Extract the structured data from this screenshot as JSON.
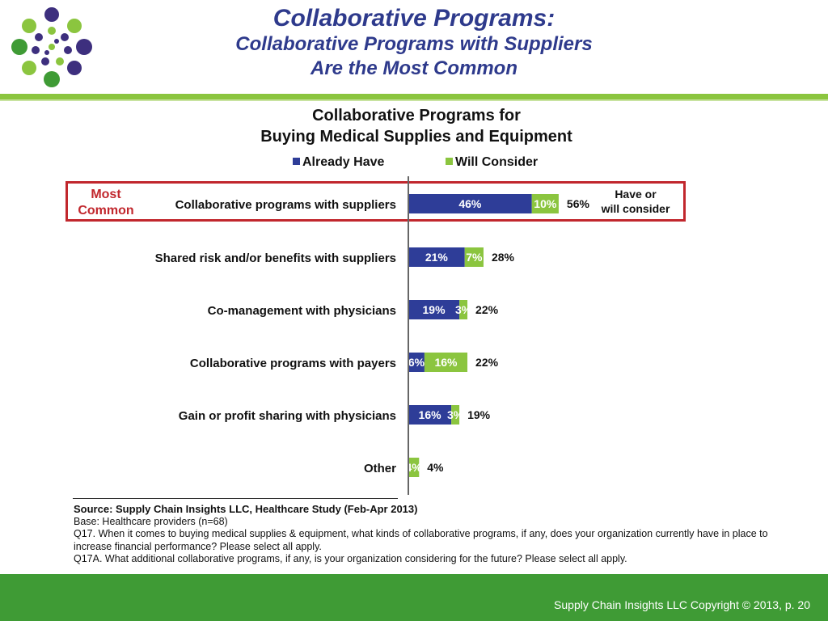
{
  "header": {
    "title": "Collaborative Programs:",
    "subtitle_line1": "Collaborative Programs with Suppliers",
    "subtitle_line2": "Are the Most Common"
  },
  "chart_data": {
    "type": "bar",
    "stacked": true,
    "orientation": "horizontal",
    "title_line1": "Collaborative Programs for",
    "title_line2": "Buying Medical Supplies and Equipment",
    "categories": [
      "Collaborative programs with suppliers",
      "Shared risk and/or benefits with suppliers",
      "Co-management with physicians",
      "Collaborative programs with payers",
      "Gain or profit sharing with physicians",
      "Other"
    ],
    "series": [
      {
        "name": "Already Have",
        "color": "#2e3d98",
        "values": [
          46,
          21,
          19,
          6,
          16,
          0
        ],
        "labels": [
          "46%",
          "21%",
          "19%",
          "6%",
          "16%",
          ""
        ]
      },
      {
        "name": "Will Consider",
        "color": "#8bc53f",
        "values": [
          10,
          7,
          3,
          16,
          3,
          4
        ],
        "labels": [
          "10%",
          "7%",
          "3%",
          "16%",
          "3%",
          "4%"
        ]
      }
    ],
    "totals": [
      "56%",
      "28%",
      "22%",
      "22%",
      "19%",
      "4%"
    ],
    "legend_position": "top",
    "grid": false,
    "xlim": [
      0,
      56
    ]
  },
  "callouts": {
    "most_common": "Most Common",
    "have_or": "Have or",
    "will_consider": "will consider"
  },
  "notes": {
    "source": "Source:  Supply Chain Insights LLC, Healthcare Study (Feb-Apr 2013)",
    "base": "Base:  Healthcare providers (n=68)",
    "q17": "Q17. When it comes to buying medical supplies & equipment, what kinds of collaborative programs, if any, does your organization currently have in place to increase financial performance? Please select all apply.",
    "q17a": "Q17A. What additional collaborative programs, if any, is your organization considering for the future? Please select all apply."
  },
  "footer": {
    "copyright": "Supply Chain Insights LLC Copyright © 2013, p. 20"
  }
}
